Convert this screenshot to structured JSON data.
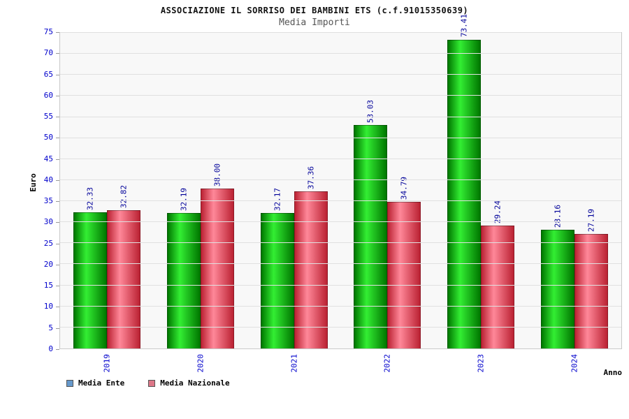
{
  "chart_data": {
    "type": "bar",
    "title": "ASSOCIAZIONE IL SORRISO DEI BAMBINI ETS (c.f.91015350639)",
    "subtitle": "Media Importi",
    "ylabel": "Euro",
    "xlabel": "Anno",
    "ylim": [
      0,
      75
    ],
    "ytick_step": 5,
    "grid": true,
    "legend_position": "bottom-left",
    "categories": [
      "2019",
      "2020",
      "2021",
      "2022",
      "2023",
      "2024"
    ],
    "series": [
      {
        "name": "Media Ente",
        "legend_color": "#6699cc",
        "bar_dark": "#007700",
        "bar_light": "#33ee33",
        "values": [
          32.33,
          32.19,
          32.17,
          53.03,
          73.41,
          28.16
        ]
      },
      {
        "name": "Media Nazionale",
        "legend_color": "#dd7788",
        "bar_dark": "#bb2233",
        "bar_light": "#ff8899",
        "values": [
          32.82,
          38.0,
          37.36,
          34.79,
          29.24,
          27.19
        ]
      }
    ],
    "axis_color": "#0000cc",
    "value_label_color": "#000099"
  }
}
